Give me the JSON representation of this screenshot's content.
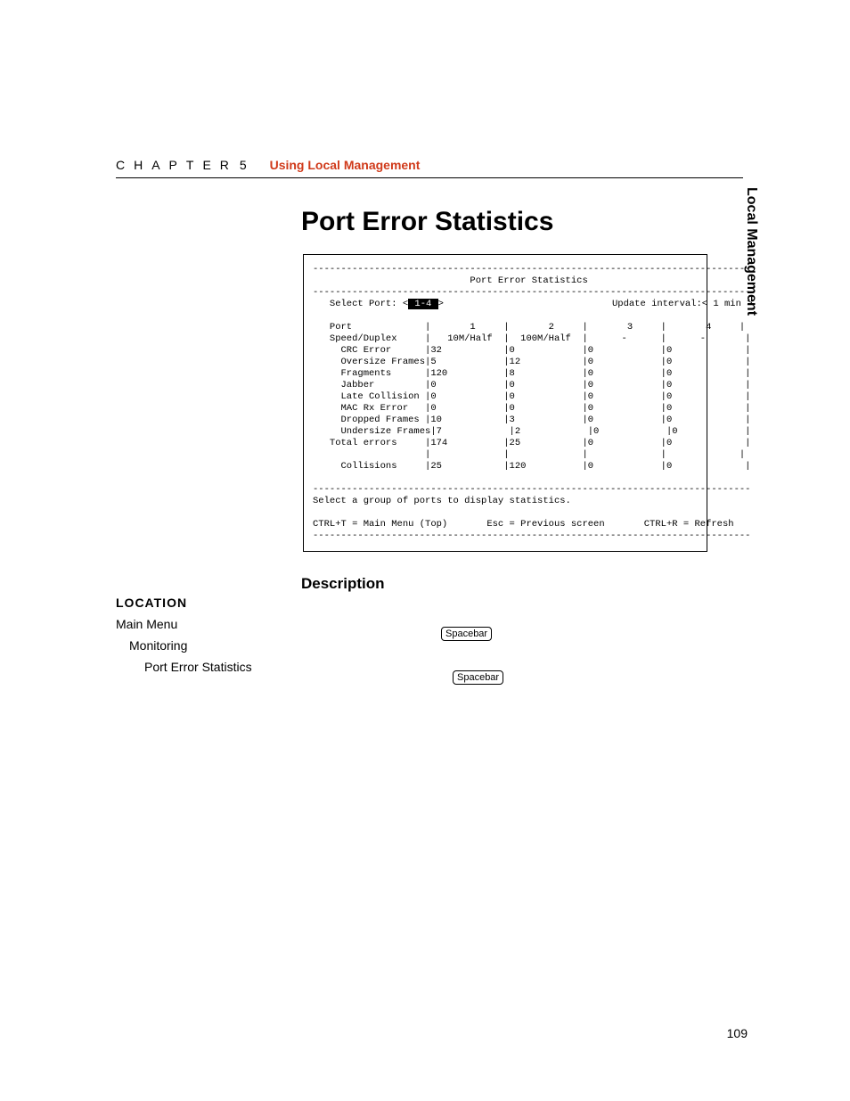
{
  "header": {
    "chapter_word": "CHAPTER",
    "chapter_num": "5",
    "section": "Using Local Management"
  },
  "side_tab": "Local Management",
  "title": "Port Error Statistics",
  "terminal": {
    "dashline": "------------------------------------------------------------------------------",
    "headline_center": "Port Error Statistics",
    "select_left": "   Select Port: <",
    "select_hl": " 1-4 ",
    "select_after": ">",
    "update": "Update interval:< 1 min >",
    "port_line": "   Port             |       1     |       2     |       3     |       4     |",
    "rows": [
      [
        "Speed/Duplex",
        "   10M/Half",
        "  100M/Half",
        "      -",
        "      -"
      ],
      [
        "  CRC Error",
        "32",
        "0",
        "0",
        "0"
      ],
      [
        "  Oversize Frames",
        "5",
        "12",
        "0",
        "0"
      ],
      [
        "  Fragments",
        "120",
        "8",
        "0",
        "0"
      ],
      [
        "  Jabber",
        "0",
        "0",
        "0",
        "0"
      ],
      [
        "  Late Collision",
        "0",
        "0",
        "0",
        "0"
      ],
      [
        "  MAC Rx Error",
        "0",
        "0",
        "0",
        "0"
      ],
      [
        "  Dropped Frames",
        "10",
        "3",
        "0",
        "0"
      ],
      [
        "  Undersize Frames",
        "7",
        "2",
        "0",
        "0"
      ],
      [
        "Total errors",
        "174",
        "25",
        "0",
        "0"
      ]
    ],
    "blank_row": "                    |             |             |             |             |",
    "collisions_row": [
      "  Collisions",
      "25",
      "120",
      "0",
      "0"
    ],
    "instruction": "Select a group of ports to display statistics.",
    "footer": "CTRL+T = Main Menu (Top)       Esc = Previous screen       CTRL+R = Refresh"
  },
  "description_heading": "Description",
  "location": {
    "label": "LOCATION",
    "l1": "Main Menu",
    "l2": "Monitoring",
    "l3": "Port Error Statistics"
  },
  "key1": "Spacebar",
  "key2": "Spacebar",
  "page_number": "109"
}
